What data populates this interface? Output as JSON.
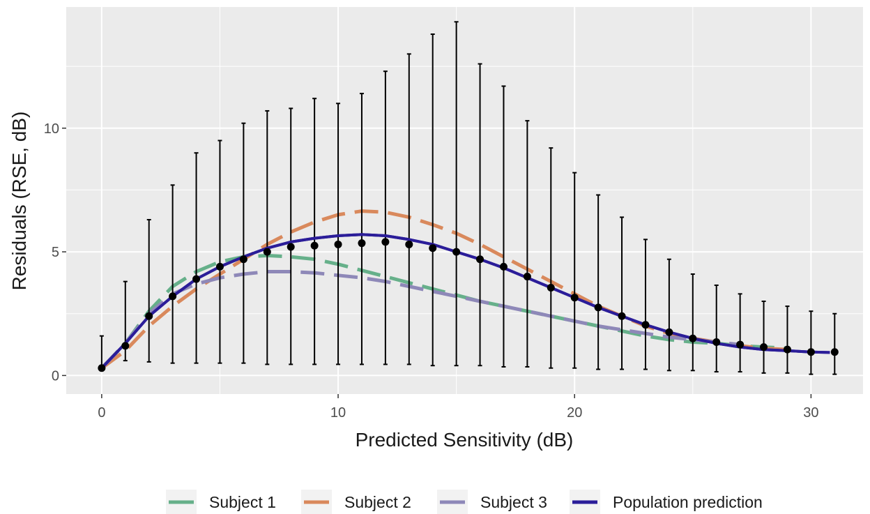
{
  "chart_data": {
    "type": "line",
    "title": "",
    "xlabel": "Predicted Sensitivity (dB)",
    "ylabel": "Residuals (RSE, dB)",
    "xlim": [
      -1.5,
      32.2
    ],
    "ylim": [
      -0.75,
      14.9
    ],
    "x_ticks": [
      0,
      10,
      20,
      30
    ],
    "x_tick_labels": [
      "0",
      "10",
      "20",
      "30"
    ],
    "y_ticks": [
      0,
      5,
      10
    ],
    "y_tick_labels": [
      "0",
      "5",
      "10"
    ],
    "grid": true,
    "legend_position": "bottom",
    "background": "#ebebeb",
    "series": [
      {
        "name": "Subject 1",
        "style": "dashed",
        "color": "#66b08a",
        "x": [
          0,
          1,
          2,
          3,
          4,
          5,
          6,
          7,
          8,
          9,
          10,
          11,
          12,
          13,
          14,
          15,
          16,
          17,
          18,
          19,
          20,
          21,
          22,
          23,
          24,
          25,
          26,
          27,
          28,
          29
        ],
        "values": [
          0.3,
          1.3,
          2.6,
          3.6,
          4.2,
          4.6,
          4.8,
          4.85,
          4.8,
          4.7,
          4.5,
          4.25,
          4.0,
          3.75,
          3.5,
          3.25,
          3.0,
          2.8,
          2.6,
          2.4,
          2.2,
          2.0,
          1.8,
          1.6,
          1.45,
          1.35,
          1.3,
          1.2,
          1.15,
          1.1
        ]
      },
      {
        "name": "Subject 2",
        "style": "dashed",
        "color": "#d9895c",
        "x": [
          0,
          1,
          2,
          3,
          4,
          5,
          6,
          7,
          8,
          9,
          10,
          11,
          12,
          13,
          14,
          15,
          16,
          17,
          18,
          19,
          20,
          21,
          22,
          23,
          24,
          25,
          26,
          27,
          28,
          29
        ],
        "values": [
          0.3,
          1.0,
          2.0,
          2.8,
          3.5,
          4.1,
          4.7,
          5.3,
          5.8,
          6.2,
          6.5,
          6.65,
          6.6,
          6.4,
          6.1,
          5.75,
          5.3,
          4.8,
          4.3,
          3.8,
          3.3,
          2.8,
          2.4,
          2.0,
          1.7,
          1.5,
          1.35,
          1.2,
          1.1,
          1.05
        ]
      },
      {
        "name": "Subject 3",
        "style": "dashed",
        "color": "#8e88b8",
        "x": [
          0,
          1,
          2,
          3,
          4,
          5,
          6,
          7,
          8,
          9,
          10,
          11,
          12,
          13,
          14,
          15,
          16,
          17,
          18,
          19,
          20,
          21,
          22,
          23,
          24,
          25,
          26,
          27
        ],
        "values": [
          0.3,
          1.3,
          2.5,
          3.3,
          3.7,
          3.95,
          4.1,
          4.2,
          4.2,
          4.15,
          4.05,
          3.95,
          3.8,
          3.6,
          3.4,
          3.2,
          3.0,
          2.8,
          2.6,
          2.4,
          2.2,
          2.0,
          1.85,
          1.7,
          1.55,
          1.45,
          1.35,
          1.25
        ]
      },
      {
        "name": "Population prediction",
        "style": "solid",
        "color": "#2b1d99",
        "x": [
          0,
          1,
          2,
          3,
          4,
          5,
          6,
          7,
          8,
          9,
          10,
          11,
          12,
          13,
          14,
          15,
          16,
          17,
          18,
          19,
          20,
          21,
          22,
          23,
          24,
          25,
          26,
          27,
          28,
          29,
          30,
          30.8
        ],
        "values": [
          0.3,
          1.3,
          2.4,
          3.2,
          3.9,
          4.4,
          4.8,
          5.15,
          5.4,
          5.55,
          5.65,
          5.7,
          5.65,
          5.5,
          5.3,
          5.0,
          4.7,
          4.35,
          3.95,
          3.55,
          3.15,
          2.75,
          2.4,
          2.05,
          1.75,
          1.5,
          1.3,
          1.15,
          1.05,
          1.0,
          0.95,
          0.93
        ]
      }
    ],
    "points": {
      "x": [
        0,
        1,
        2,
        3,
        4,
        5,
        6,
        7,
        8,
        9,
        10,
        11,
        12,
        13,
        14,
        15,
        16,
        17,
        18,
        19,
        20,
        21,
        22,
        23,
        24,
        25,
        26,
        27,
        28,
        29,
        30,
        31
      ],
      "y": [
        0.3,
        1.2,
        2.4,
        3.2,
        3.9,
        4.4,
        4.7,
        5.0,
        5.2,
        5.25,
        5.3,
        5.35,
        5.4,
        5.3,
        5.15,
        5.0,
        4.7,
        4.4,
        4.0,
        3.55,
        3.15,
        2.75,
        2.4,
        2.05,
        1.75,
        1.5,
        1.35,
        1.25,
        1.15,
        1.05,
        0.95,
        0.95
      ],
      "y_low": [
        0.2,
        0.6,
        0.55,
        0.5,
        0.5,
        0.5,
        0.5,
        0.45,
        0.45,
        0.45,
        0.45,
        0.45,
        0.45,
        0.45,
        0.4,
        0.4,
        0.4,
        0.35,
        0.35,
        0.3,
        0.3,
        0.25,
        0.25,
        0.25,
        0.2,
        0.2,
        0.15,
        0.15,
        0.1,
        0.1,
        0.05,
        0.05
      ],
      "y_high": [
        1.6,
        3.8,
        6.3,
        7.7,
        9.0,
        9.5,
        10.2,
        10.7,
        10.8,
        11.2,
        11.0,
        11.4,
        12.3,
        13.0,
        13.8,
        14.3,
        12.6,
        11.7,
        10.3,
        9.2,
        8.2,
        7.3,
        6.4,
        5.5,
        4.7,
        4.1,
        3.65,
        3.3,
        3.0,
        2.8,
        2.6,
        2.5
      ],
      "color": "#000000"
    }
  }
}
